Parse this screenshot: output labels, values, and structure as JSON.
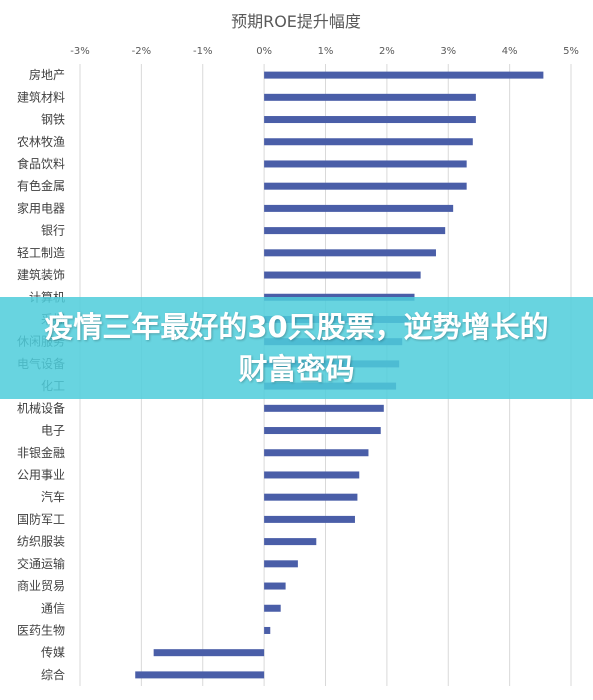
{
  "chart_data": {
    "type": "bar",
    "orientation": "horizontal",
    "title": "预期ROE提升幅度",
    "xlabel": "",
    "ylabel": "",
    "xlim": [
      -3,
      5
    ],
    "ticks": [
      "-3%",
      "-2%",
      "-1%",
      "0%",
      "1%",
      "2%",
      "3%",
      "4%",
      "5%"
    ],
    "tick_values": [
      -3,
      -2,
      -1,
      0,
      1,
      2,
      3,
      4,
      5
    ],
    "grid": true,
    "bar_color": "#4a5ea8",
    "categories": [
      "房地产",
      "建筑材料",
      "钢铁",
      "农林牧渔",
      "食品饮料",
      "有色金属",
      "家用电器",
      "银行",
      "轻工制造",
      "建筑装饰",
      "计算机",
      "采掘",
      "休闲服务",
      "电气设备",
      "化工",
      "机械设备",
      "电子",
      "非银金融",
      "公用事业",
      "汽车",
      "国防军工",
      "纺织服装",
      "交通运输",
      "商业贸易",
      "通信",
      "医药生物",
      "传媒",
      "综合"
    ],
    "values": [
      4.55,
      3.45,
      3.45,
      3.4,
      3.3,
      3.3,
      3.08,
      2.95,
      2.8,
      2.55,
      2.45,
      2.35,
      2.25,
      2.2,
      2.15,
      1.95,
      1.9,
      1.7,
      1.55,
      1.52,
      1.48,
      0.85,
      0.55,
      0.35,
      0.27,
      0.1,
      -1.8,
      -2.1
    ]
  },
  "banner": {
    "text": "疫情三年最好的30只股票，逆势增长的财富密码",
    "color": "#4dcddb"
  }
}
